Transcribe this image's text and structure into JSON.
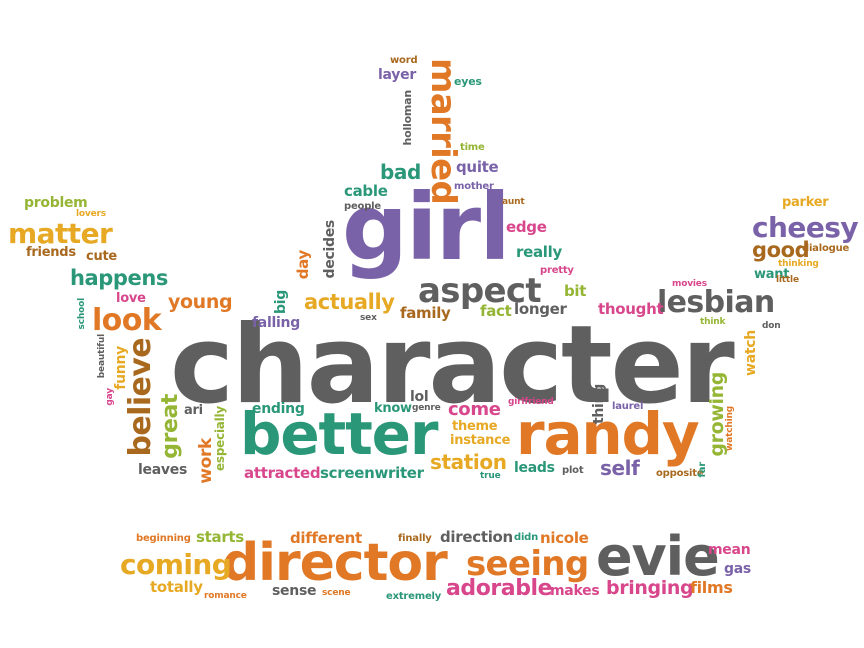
{
  "palette": {
    "charcoal": "#5f5f5f",
    "orange": "#e07826",
    "teal": "#2a9778",
    "purple": "#7a62a9",
    "olive": "#95b534",
    "gold": "#e7a923",
    "pink": "#d8468c",
    "brown": "#a8691f"
  },
  "words": {
    "character": "character",
    "girl": "girl",
    "better": "better",
    "randy": "randy",
    "director": "director",
    "evie": "evie",
    "seeing": "seeing",
    "coming": "coming",
    "married": "married",
    "aspect": "aspect",
    "lesbian": "lesbian",
    "cheesy": "cheesy",
    "matter": "matter",
    "look": "look",
    "believe": "believe",
    "happens": "happens",
    "good": "good",
    "actually": "actually",
    "adorable": "adorable",
    "bringing": "bringing",
    "station": "station",
    "great": "great",
    "young": "young",
    "bad": "bad",
    "quite": "quite",
    "cable": "cable",
    "edge": "edge",
    "really": "really",
    "decides": "decides",
    "day": "day",
    "big": "big",
    "falling": "falling",
    "family": "family",
    "fact": "fact",
    "longer": "longer",
    "thought": "thought",
    "bit": "bit",
    "pretty": "pretty",
    "come": "come",
    "theme": "theme",
    "instance": "instance",
    "lol": "lol",
    "know": "know",
    "genre": "genre",
    "girlfriend": "girlfriend",
    "thing": "thing",
    "laurel": "laurel",
    "growing": "growing",
    "watching": "watching",
    "self": "self",
    "leads": "leads",
    "plot": "plot",
    "opposite": "opposite",
    "far": "far",
    "true": "true",
    "screenwriter": "screenwriter",
    "attracted": "attracted",
    "work": "work",
    "especially": "especially",
    "leaves": "leaves",
    "ending": "ending",
    "ari": "ari",
    "funny": "funny",
    "beautiful": "beautiful",
    "gay": "gay",
    "school": "school",
    "love": "love",
    "problem": "problem",
    "lovers": "lovers",
    "cute": "cute",
    "friends": "friends",
    "parker": "parker",
    "dialogue": "dialogue",
    "thinking": "thinking",
    "want": "want",
    "little": "little",
    "movies": "movies",
    "think": "think",
    "don": "don",
    "watch": "watch",
    "word": "word",
    "layer": "layer",
    "eyes": "eyes",
    "holloman": "holloman",
    "time": "time",
    "mother": "mother",
    "people": "people",
    "aunt": "aunt",
    "sex": "sex",
    "beginning": "beginning",
    "starts": "starts",
    "different": "different",
    "finally": "finally",
    "direction": "direction",
    "didn": "didn",
    "nicole": "nicole",
    "mean": "mean",
    "gas": "gas",
    "totally": "totally",
    "romance": "romance",
    "sense": "sense",
    "scene": "scene",
    "extremely": "extremely",
    "makes": "makes",
    "films": "films"
  }
}
